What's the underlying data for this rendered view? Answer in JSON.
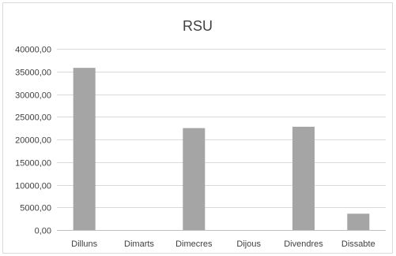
{
  "chart_data": {
    "type": "bar",
    "title": "RSU",
    "xlabel": "",
    "ylabel": "",
    "categories": [
      "Dilluns",
      "Dimarts",
      "Dimecres",
      "Dijous",
      "Divendres",
      "Dissabte"
    ],
    "values": [
      35800,
      0,
      22500,
      0,
      22800,
      3600
    ],
    "ylim": [
      0,
      40000
    ],
    "yticks": [
      0,
      5000,
      10000,
      15000,
      20000,
      25000,
      30000,
      35000,
      40000
    ],
    "ytick_labels": [
      "0,00",
      "5000,00",
      "10000,00",
      "15000,00",
      "20000,00",
      "25000,00",
      "30000,00",
      "35000,00",
      "40000,00"
    ],
    "grid": true,
    "legend": "none",
    "bar_color": "#a5a5a5"
  }
}
